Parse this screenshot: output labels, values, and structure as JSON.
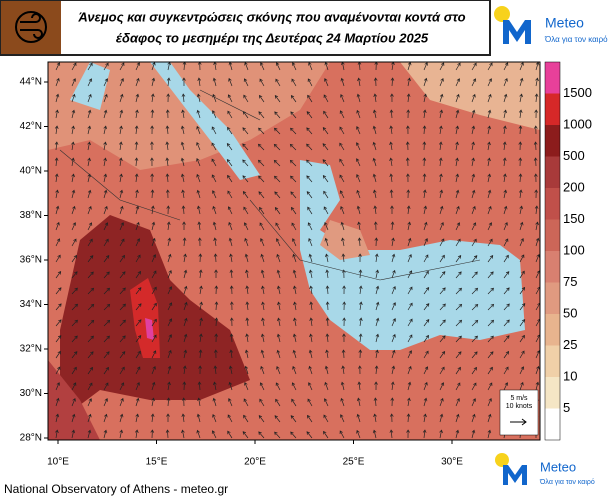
{
  "header": {
    "title_line1": "Άνεμος και συγκεντρώσεις σκόνης που αναμένονται κοντά στο",
    "title_line2": "έδαφος το μεσημέρι της Δευτέρας 24 Μαρτίου 2025"
  },
  "logo": {
    "name": "Meteo",
    "tagline": "Όλα για τον καιρό"
  },
  "map": {
    "lat_labels": [
      "44°N",
      "42°N",
      "40°N",
      "38°N",
      "36°N",
      "34°N",
      "32°N",
      "30°N",
      "28°N"
    ],
    "lon_labels": [
      "10°E",
      "15°E",
      "20°E",
      "25°E",
      "30°E"
    ],
    "wind_legend": {
      "speed": "5 m/s",
      "knots": "10 knots"
    }
  },
  "colorbar": {
    "labels": [
      1500,
      1000,
      500,
      200,
      150,
      100,
      75,
      50,
      25,
      10,
      5
    ]
  },
  "footer": {
    "text": "National Observatory of Athens - meteo.gr"
  }
}
